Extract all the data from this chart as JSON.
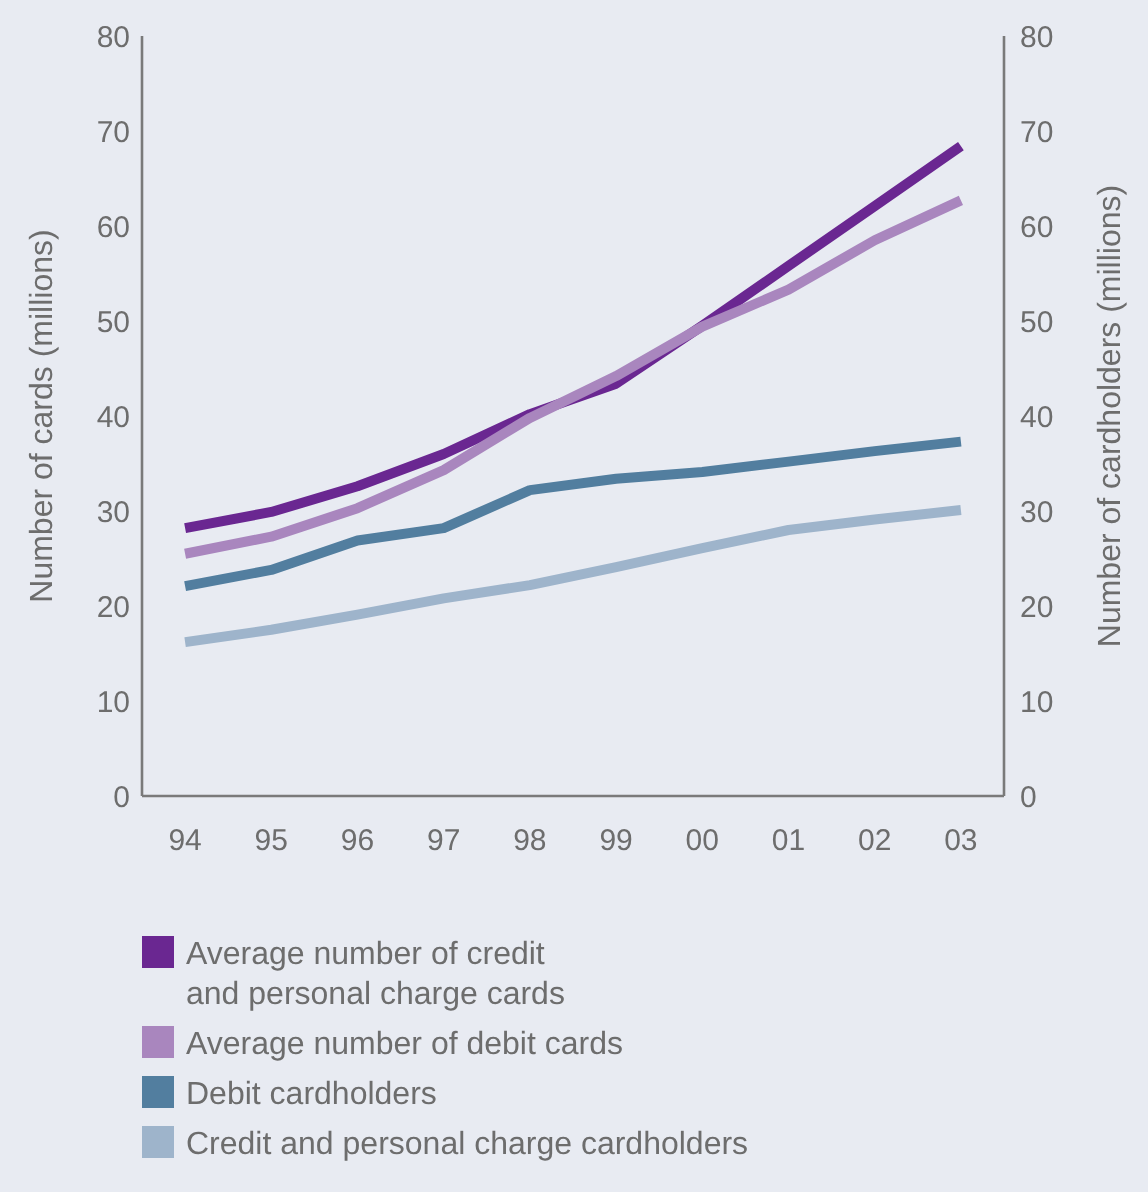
{
  "chart_data": {
    "type": "line",
    "categories": [
      "94",
      "95",
      "96",
      "97",
      "98",
      "99",
      "00",
      "01",
      "02",
      "03"
    ],
    "ylabel": "Number of cards (millions)",
    "y2label": "Number of cardholders (millions)",
    "ylim": [
      0,
      80
    ],
    "yticks": [
      0,
      10,
      20,
      30,
      40,
      50,
      60,
      70,
      80
    ],
    "y2lim": [
      0,
      80
    ],
    "y2ticks": [
      0,
      10,
      20,
      30,
      40,
      50,
      60,
      70,
      80
    ],
    "legend": "bottom",
    "line_style": "solid",
    "series": [
      {
        "name": "Average number of credit\nand personal charge cards",
        "color": "#6a2791",
        "values": [
          28.2,
          29.9,
          32.6,
          36.0,
          40.2,
          43.4,
          49.5,
          55.8,
          62.1,
          68.4
        ]
      },
      {
        "name": "Average number of debit cards",
        "color": "#a986be",
        "values": [
          25.5,
          27.3,
          30.3,
          34.3,
          39.8,
          44.2,
          49.4,
          53.3,
          58.5,
          62.7
        ]
      },
      {
        "name": "Debit cardholders",
        "color": "#527e9f",
        "values": [
          22.1,
          23.8,
          26.9,
          28.2,
          32.2,
          33.4,
          34.1,
          35.2,
          36.3,
          37.3
        ]
      },
      {
        "name": "Credit and personal charge cardholders",
        "color": "#9eb4cb",
        "values": [
          16.2,
          17.5,
          19.1,
          20.8,
          22.2,
          24.1,
          26.1,
          28.0,
          29.1,
          30.1
        ]
      }
    ]
  }
}
